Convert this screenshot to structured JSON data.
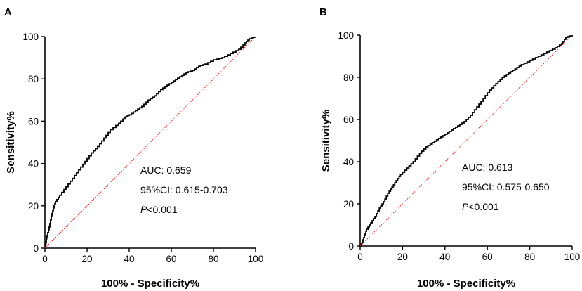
{
  "chart_data": [
    {
      "type": "line",
      "panel_label": "A",
      "title": "",
      "xlabel": "100% - Specificity%",
      "ylabel": "Sensitivity%",
      "xlim": [
        0,
        100
      ],
      "ylim": [
        0,
        100
      ],
      "xticks": [
        "0",
        "20",
        "40",
        "60",
        "80",
        "100"
      ],
      "yticks": [
        "0",
        "20",
        "40",
        "60",
        "80",
        "100"
      ],
      "grid": false,
      "series": [
        {
          "name": "ROC curve",
          "color": "#000000",
          "style": "solid-step",
          "x": [
            0,
            0.5,
            1,
            2,
            3,
            4,
            5,
            7,
            10,
            13,
            16,
            19,
            22,
            25,
            28,
            31,
            35,
            38,
            40,
            43,
            46,
            49,
            52,
            55,
            58,
            61,
            64,
            67,
            70,
            73,
            76,
            80,
            84,
            88,
            92,
            95,
            97,
            100
          ],
          "y": [
            0,
            3,
            6,
            10,
            15,
            19,
            22,
            25,
            29,
            33,
            37,
            41,
            45,
            48,
            52,
            56,
            59,
            62,
            63,
            65,
            67,
            70,
            72,
            75,
            77,
            79,
            81,
            83,
            84,
            86,
            87,
            89,
            90,
            92,
            94,
            97,
            99,
            100
          ]
        },
        {
          "name": "Reference line",
          "color": "#e41a1c",
          "style": "dotted",
          "x": [
            0,
            100
          ],
          "y": [
            0,
            100
          ]
        }
      ],
      "annotations": {
        "auc": "AUC: 0.659",
        "ci": "95%CI: 0.615-0.703",
        "p_prefix": "P",
        "p_rest": "<0.001"
      }
    },
    {
      "type": "line",
      "panel_label": "B",
      "title": "",
      "xlabel": "100% - Specificity%",
      "ylabel": "Sensitivity%",
      "xlim": [
        0,
        100
      ],
      "ylim": [
        0,
        100
      ],
      "xticks": [
        "0",
        "20",
        "40",
        "60",
        "80",
        "100"
      ],
      "yticks": [
        "0",
        "20",
        "40",
        "60",
        "80",
        "100"
      ],
      "grid": false,
      "series": [
        {
          "name": "ROC curve",
          "color": "#000000",
          "style": "solid-step",
          "x": [
            0,
            1,
            2,
            3,
            5,
            7,
            9,
            11,
            13,
            15,
            17,
            19,
            22,
            25,
            28,
            31,
            34,
            37,
            40,
            43,
            46,
            49,
            52,
            55,
            58,
            61,
            64,
            67,
            70,
            73,
            76,
            80,
            84,
            88,
            92,
            95,
            97,
            100
          ],
          "y": [
            0,
            2,
            5,
            8,
            11,
            14,
            18,
            21,
            25,
            28,
            31,
            34,
            37,
            40,
            44,
            47,
            49,
            51,
            53,
            55,
            57,
            59,
            62,
            66,
            70,
            74,
            77,
            80,
            82,
            84,
            86,
            88,
            90,
            92,
            94,
            96,
            99,
            100
          ]
        },
        {
          "name": "Reference line",
          "color": "#e41a1c",
          "style": "dotted",
          "x": [
            0,
            100
          ],
          "y": [
            0,
            100
          ]
        }
      ],
      "annotations": {
        "auc": "AUC: 0.613",
        "ci": "95%CI: 0.575-0.650",
        "p_prefix": "P",
        "p_rest": "<0.001"
      }
    }
  ]
}
